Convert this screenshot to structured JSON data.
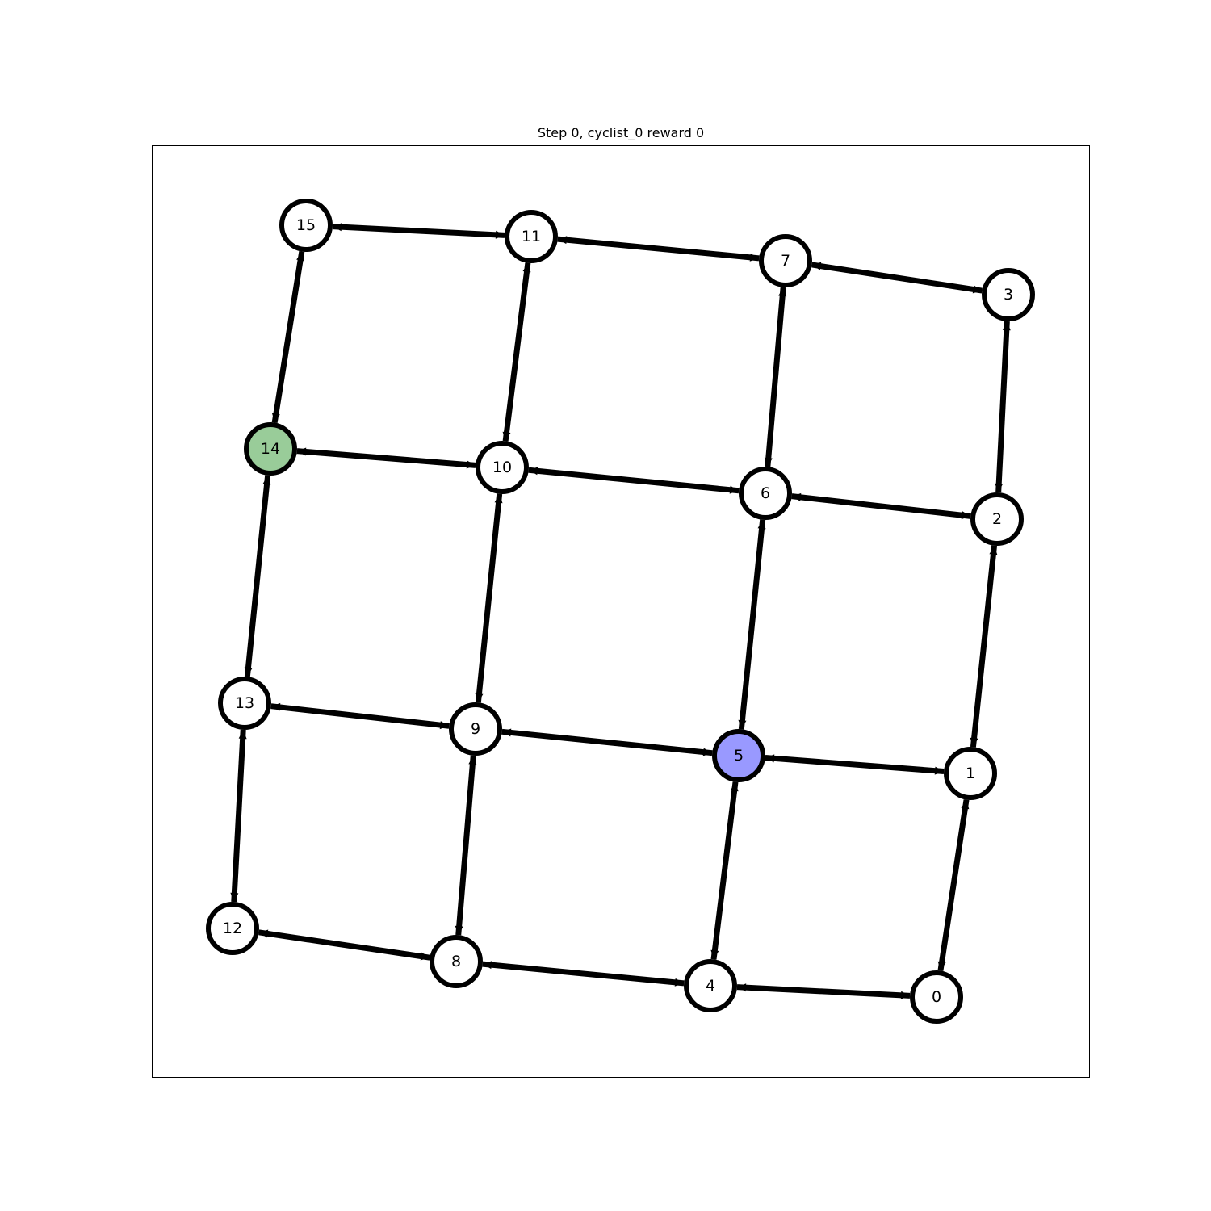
{
  "title": "Step 0, cyclist_0 reward 0",
  "colors": {
    "edge": "#000000",
    "node_stroke": "#000000",
    "node_fill": "#ffffff",
    "agent": "#9999ff",
    "goal": "#99cc99"
  },
  "agent_node": "5",
  "goal_node": "14",
  "nodes": [
    {
      "id": "0",
      "label": "0"
    },
    {
      "id": "1",
      "label": "1"
    },
    {
      "id": "2",
      "label": "2"
    },
    {
      "id": "3",
      "label": "3"
    },
    {
      "id": "4",
      "label": "4"
    },
    {
      "id": "5",
      "label": "5"
    },
    {
      "id": "6",
      "label": "6"
    },
    {
      "id": "7",
      "label": "7"
    },
    {
      "id": "8",
      "label": "8"
    },
    {
      "id": "9",
      "label": "9"
    },
    {
      "id": "10",
      "label": "10"
    },
    {
      "id": "11",
      "label": "11"
    },
    {
      "id": "12",
      "label": "12"
    },
    {
      "id": "13",
      "label": "13"
    },
    {
      "id": "14",
      "label": "14"
    },
    {
      "id": "15",
      "label": "15"
    }
  ],
  "edges": [
    [
      "15",
      "11"
    ],
    [
      "11",
      "7"
    ],
    [
      "7",
      "3"
    ],
    [
      "14",
      "10"
    ],
    [
      "10",
      "6"
    ],
    [
      "6",
      "2"
    ],
    [
      "13",
      "9"
    ],
    [
      "9",
      "5"
    ],
    [
      "5",
      "1"
    ],
    [
      "12",
      "8"
    ],
    [
      "8",
      "4"
    ],
    [
      "4",
      "0"
    ],
    [
      "15",
      "14"
    ],
    [
      "14",
      "13"
    ],
    [
      "13",
      "12"
    ],
    [
      "11",
      "10"
    ],
    [
      "10",
      "9"
    ],
    [
      "9",
      "8"
    ],
    [
      "7",
      "6"
    ],
    [
      "6",
      "5"
    ],
    [
      "5",
      "4"
    ],
    [
      "3",
      "2"
    ],
    [
      "2",
      "1"
    ],
    [
      "1",
      "0"
    ]
  ]
}
